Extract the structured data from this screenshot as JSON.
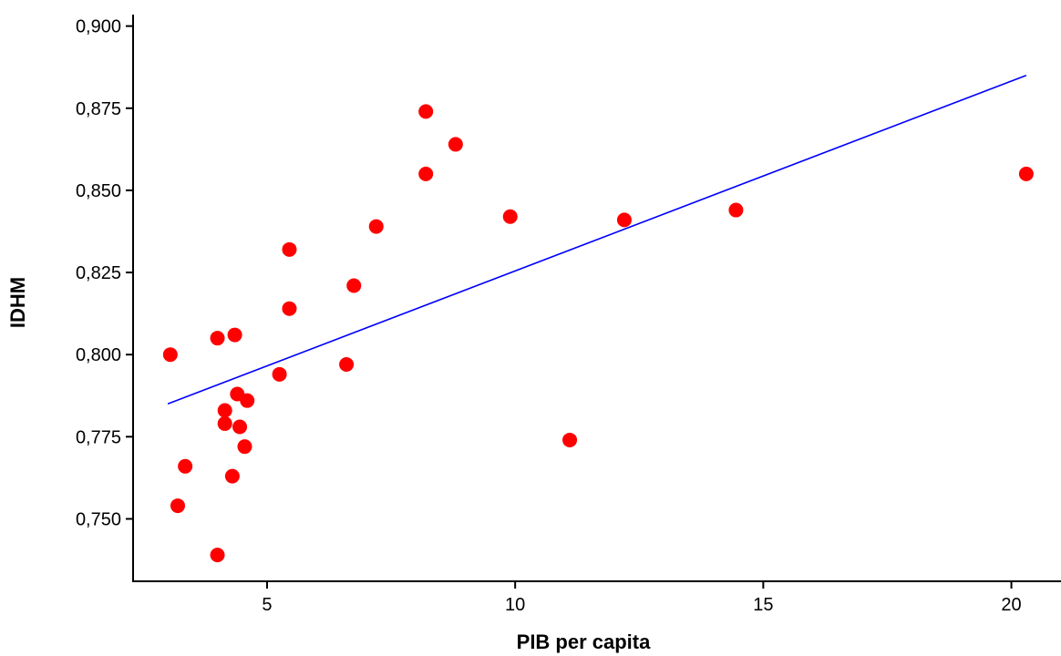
{
  "chart_data": {
    "type": "scatter",
    "xlabel": "PIB per capita",
    "ylabel": "IDHM",
    "xlim": [
      2.3,
      21.0
    ],
    "ylim": [
      0.731,
      0.9035
    ],
    "xticks": [
      {
        "value": 5,
        "label": "5"
      },
      {
        "value": 10,
        "label": "10"
      },
      {
        "value": 15,
        "label": "15"
      },
      {
        "value": 20,
        "label": "20"
      }
    ],
    "yticks": [
      {
        "value": 0.75,
        "label": "0,750"
      },
      {
        "value": 0.775,
        "label": "0,775"
      },
      {
        "value": 0.8,
        "label": "0,800"
      },
      {
        "value": 0.825,
        "label": "0,825"
      },
      {
        "value": 0.85,
        "label": "0,850"
      },
      {
        "value": 0.875,
        "label": "0,875"
      },
      {
        "value": 0.9,
        "label": "0,900"
      }
    ],
    "grid": false,
    "points": [
      {
        "x": 3.05,
        "y": 0.8
      },
      {
        "x": 3.2,
        "y": 0.754
      },
      {
        "x": 3.35,
        "y": 0.766
      },
      {
        "x": 4.0,
        "y": 0.805
      },
      {
        "x": 4.0,
        "y": 0.739
      },
      {
        "x": 4.15,
        "y": 0.783
      },
      {
        "x": 4.15,
        "y": 0.779
      },
      {
        "x": 4.3,
        "y": 0.763
      },
      {
        "x": 4.35,
        "y": 0.806
      },
      {
        "x": 4.4,
        "y": 0.788
      },
      {
        "x": 4.45,
        "y": 0.778
      },
      {
        "x": 4.55,
        "y": 0.772
      },
      {
        "x": 4.6,
        "y": 0.786
      },
      {
        "x": 5.25,
        "y": 0.794
      },
      {
        "x": 5.45,
        "y": 0.832
      },
      {
        "x": 5.45,
        "y": 0.814
      },
      {
        "x": 6.6,
        "y": 0.797
      },
      {
        "x": 6.75,
        "y": 0.821
      },
      {
        "x": 7.2,
        "y": 0.839
      },
      {
        "x": 8.2,
        "y": 0.874
      },
      {
        "x": 8.2,
        "y": 0.855
      },
      {
        "x": 8.8,
        "y": 0.864
      },
      {
        "x": 9.9,
        "y": 0.842
      },
      {
        "x": 11.1,
        "y": 0.774
      },
      {
        "x": 12.2,
        "y": 0.841
      },
      {
        "x": 14.45,
        "y": 0.844
      },
      {
        "x": 20.3,
        "y": 0.855
      }
    ],
    "trendline": {
      "x": [
        3.0,
        20.3
      ],
      "y": [
        0.785,
        0.885
      ]
    },
    "colors": {
      "points": "#ff0000",
      "trendline": "#0000ff",
      "axes": "#000000"
    }
  }
}
